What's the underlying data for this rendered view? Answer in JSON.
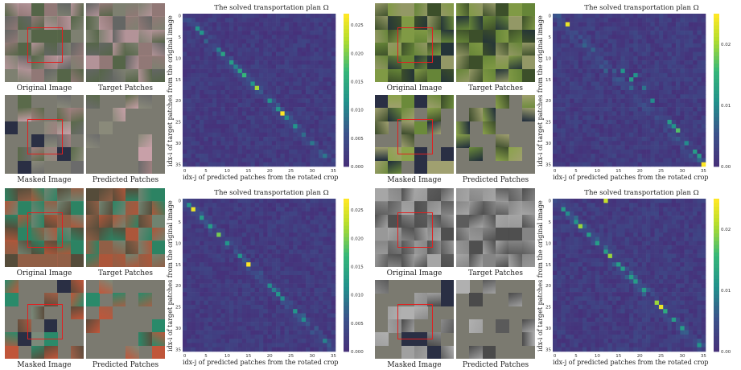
{
  "captions": {
    "original": "Original Image",
    "target": "Target Patches",
    "masked": "Masked Image",
    "predicted": "Predicted Patches"
  },
  "chart_title": "The solved transportation plan Ω",
  "xlabel": "idx-j of predicted patches from the rotated crop",
  "ylabel": "idx-i of target patches from the original image",
  "colors": {
    "bg": "#46317a",
    "diag_low": "#3c5c8c",
    "diag_mid": "#2a9a88",
    "diag_high": "#a8d54a",
    "peak": "#f0e020",
    "photo_green": "#3d6b2a",
    "photo_gray": "#8a8a8a",
    "mask": "#7b7a70"
  },
  "panels": [
    {
      "id": "top-left",
      "scene": "bridge",
      "chart_data": {
        "type": "heatmap",
        "title": "The solved transportation plan Ω",
        "xlabel": "idx-j of predicted patches from the rotated crop",
        "ylabel": "idx-i of target patches from the original image",
        "x_ticks": [
          0,
          5,
          10,
          15,
          20,
          25,
          30,
          35
        ],
        "y_ticks": [
          0,
          5,
          10,
          15,
          20,
          25,
          30,
          35
        ],
        "colorbar_ticks": [
          "0.000",
          "0.005",
          "0.010",
          "0.015",
          "0.020",
          "0.025"
        ],
        "vmax": 0.027,
        "notable_cells": [
          [
            3,
            3,
            0.012
          ],
          [
            4,
            4,
            0.012
          ],
          [
            8,
            8,
            0.01
          ],
          [
            9,
            9,
            0.014
          ],
          [
            11,
            11,
            0.013
          ],
          [
            12,
            12,
            0.01
          ],
          [
            13,
            13,
            0.014
          ],
          [
            14,
            14,
            0.017
          ],
          [
            16,
            16,
            0.012
          ],
          [
            17,
            17,
            0.022
          ],
          [
            20,
            20,
            0.012
          ],
          [
            22,
            22,
            0.012
          ],
          [
            23,
            23,
            0.028
          ],
          [
            24,
            24,
            0.011
          ],
          [
            26,
            26,
            0.012
          ],
          [
            28,
            28,
            0.008
          ],
          [
            30,
            30,
            0.009
          ],
          [
            33,
            33,
            0.009
          ]
        ]
      }
    },
    {
      "id": "top-right",
      "scene": "lake",
      "chart_data": {
        "type": "heatmap",
        "title": "The solved transportation plan Ω",
        "xlabel": "idx-j of predicted patches from the rotated crop",
        "ylabel": "idx-i of target patches from the original image",
        "x_ticks": [
          0,
          5,
          10,
          15,
          20,
          25,
          30,
          35
        ],
        "y_ticks": [
          0,
          5,
          10,
          15,
          20,
          25,
          30,
          35
        ],
        "colorbar_ticks": [
          "0.00",
          "0.01",
          "0.02"
        ],
        "vmax": 0.025,
        "notable_cells": [
          [
            2,
            3,
            0.024
          ],
          [
            13,
            16,
            0.011
          ],
          [
            14,
            19,
            0.011
          ],
          [
            15,
            18,
            0.012
          ],
          [
            17,
            21,
            0.008
          ],
          [
            20,
            23,
            0.01
          ],
          [
            25,
            27,
            0.012
          ],
          [
            26,
            28,
            0.011
          ],
          [
            27,
            29,
            0.017
          ],
          [
            30,
            31,
            0.01
          ],
          [
            32,
            33,
            0.012
          ],
          [
            33,
            34,
            0.012
          ],
          [
            35,
            35,
            0.025
          ]
        ]
      }
    },
    {
      "id": "bottom-left",
      "scene": "stadium",
      "chart_data": {
        "type": "heatmap",
        "title": "The solved transportation plan Ω",
        "xlabel": "idx-j of predicted patches from the rotated crop",
        "ylabel": "idx-i of target patches from the original image",
        "x_ticks": [
          0,
          5,
          10,
          15,
          20,
          25,
          30,
          35
        ],
        "y_ticks": [
          0,
          5,
          10,
          15,
          20,
          25,
          30,
          35
        ],
        "colorbar_ticks": [
          "0.000",
          "0.005",
          "0.010",
          "0.015",
          "0.020",
          "0.025"
        ],
        "vmax": 0.027,
        "notable_cells": [
          [
            1,
            1,
            0.012
          ],
          [
            2,
            2,
            0.026
          ],
          [
            4,
            4,
            0.013
          ],
          [
            6,
            6,
            0.013
          ],
          [
            8,
            8,
            0.02
          ],
          [
            10,
            10,
            0.012
          ],
          [
            13,
            13,
            0.012
          ],
          [
            15,
            15,
            0.027
          ],
          [
            20,
            20,
            0.011
          ],
          [
            21,
            21,
            0.01
          ],
          [
            22,
            22,
            0.012
          ],
          [
            23,
            23,
            0.011
          ],
          [
            26,
            26,
            0.012
          ],
          [
            28,
            28,
            0.011
          ],
          [
            33,
            33,
            0.01
          ]
        ]
      }
    },
    {
      "id": "bottom-right",
      "scene": "terraces",
      "chart_data": {
        "type": "heatmap",
        "title": "The solved transportation plan Ω",
        "xlabel": "idx-j of predicted patches from the rotated crop",
        "ylabel": "idx-i of target patches from the original image",
        "x_ticks": [
          0,
          5,
          10,
          15,
          20,
          25,
          30,
          35
        ],
        "y_ticks": [
          0,
          5,
          10,
          15,
          20,
          25,
          30,
          35
        ],
        "colorbar_ticks": [
          "0.00",
          "0.01",
          "0.02"
        ],
        "vmax": 0.025,
        "notable_cells": [
          [
            0,
            12,
            0.022
          ],
          [
            2,
            2,
            0.012
          ],
          [
            3,
            3,
            0.01
          ],
          [
            5,
            5,
            0.011
          ],
          [
            6,
            6,
            0.02
          ],
          [
            8,
            8,
            0.012
          ],
          [
            10,
            10,
            0.012
          ],
          [
            12,
            12,
            0.012
          ],
          [
            13,
            13,
            0.02
          ],
          [
            15,
            15,
            0.012
          ],
          [
            16,
            16,
            0.012
          ],
          [
            18,
            18,
            0.012
          ],
          [
            19,
            19,
            0.012
          ],
          [
            21,
            21,
            0.012
          ],
          [
            24,
            24,
            0.02
          ],
          [
            25,
            25,
            0.024
          ],
          [
            26,
            26,
            0.014
          ],
          [
            28,
            28,
            0.012
          ],
          [
            30,
            30,
            0.012
          ],
          [
            34,
            34,
            0.011
          ]
        ]
      }
    }
  ]
}
